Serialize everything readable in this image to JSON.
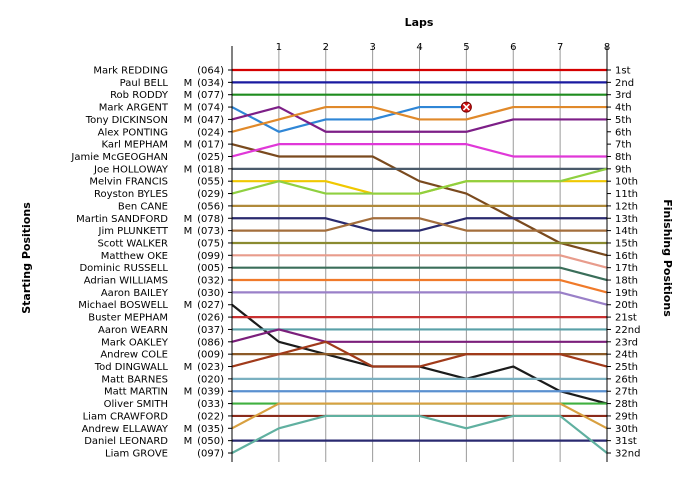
{
  "chart_data": {
    "type": "line",
    "title": "Laps",
    "xlabel": "Laps",
    "ylabel_left": "Starting Positions",
    "ylabel_right": "Finishing Positions",
    "x": [
      0,
      1,
      2,
      3,
      4,
      5,
      6,
      7,
      8
    ],
    "x_tick_labels": [
      "1",
      "2",
      "3",
      "4",
      "5",
      "6",
      "7",
      "8"
    ],
    "y_range": [
      1,
      32
    ],
    "y_inverted": true,
    "grid": "vertical",
    "drivers_left": [
      {
        "name": "Mark REDDING",
        "cls": "",
        "num": "(064)"
      },
      {
        "name": "Paul BELL",
        "cls": "M",
        "num": "(034)"
      },
      {
        "name": "Rob RODDY",
        "cls": "M",
        "num": "(077)"
      },
      {
        "name": "Mark ARGENT",
        "cls": "M",
        "num": "(074)"
      },
      {
        "name": "Tony DICKINSON",
        "cls": "M",
        "num": "(047)"
      },
      {
        "name": "Alex PONTING",
        "cls": "",
        "num": "(024)"
      },
      {
        "name": "Karl MEPHAM",
        "cls": "M",
        "num": "(017)"
      },
      {
        "name": "Jamie McGEOGHAN",
        "cls": "",
        "num": "(025)"
      },
      {
        "name": "Joe HOLLOWAY",
        "cls": "M",
        "num": "(018)"
      },
      {
        "name": "Melvin FRANCIS",
        "cls": "",
        "num": "(055)"
      },
      {
        "name": "Royston BYLES",
        "cls": "",
        "num": "(029)"
      },
      {
        "name": "Ben CANE",
        "cls": "",
        "num": "(056)"
      },
      {
        "name": "Martin SANDFORD",
        "cls": "M",
        "num": "(078)"
      },
      {
        "name": "Jim PLUNKETT",
        "cls": "M",
        "num": "(073)"
      },
      {
        "name": "Scott WALKER",
        "cls": "",
        "num": "(075)"
      },
      {
        "name": "Matthew OKE",
        "cls": "",
        "num": "(099)"
      },
      {
        "name": "Dominic RUSSELL",
        "cls": "",
        "num": "(005)"
      },
      {
        "name": "Adrian WILLIAMS",
        "cls": "",
        "num": "(032)"
      },
      {
        "name": "Aaron BAILEY",
        "cls": "",
        "num": "(030)"
      },
      {
        "name": "Michael BOSWELL",
        "cls": "M",
        "num": "(027)"
      },
      {
        "name": "Buster MEPHAM",
        "cls": "",
        "num": "(026)"
      },
      {
        "name": "Aaron WEARN",
        "cls": "",
        "num": "(037)"
      },
      {
        "name": "Mark OAKLEY",
        "cls": "",
        "num": "(086)"
      },
      {
        "name": "Andrew COLE",
        "cls": "",
        "num": "(009)"
      },
      {
        "name": "Tod DINGWALL",
        "cls": "M",
        "num": "(023)"
      },
      {
        "name": "Matt BARNES",
        "cls": "",
        "num": "(020)"
      },
      {
        "name": "Matt MARTIN",
        "cls": "M",
        "num": "(039)"
      },
      {
        "name": "Oliver SMITH",
        "cls": "",
        "num": "(033)"
      },
      {
        "name": "Liam CRAWFORD",
        "cls": "",
        "num": "(022)"
      },
      {
        "name": "Andrew ELLAWAY",
        "cls": "M",
        "num": "(035)"
      },
      {
        "name": "Daniel LEONARD",
        "cls": "M",
        "num": "(050)"
      },
      {
        "name": "Liam GROVE",
        "cls": "",
        "num": "(097)"
      }
    ],
    "finishing_labels": [
      "1st",
      "2nd",
      "3rd",
      "4th",
      "5th",
      "6th",
      "7th",
      "8th",
      "9th",
      "10th",
      "11th",
      "12th",
      "13th",
      "14th",
      "15th",
      "16th",
      "17th",
      "18th",
      "19th",
      "20th",
      "21st",
      "22nd",
      "23rd",
      "24th",
      "25th",
      "26th",
      "27th",
      "28th",
      "29th",
      "30th",
      "31st",
      "32nd"
    ],
    "series": [
      {
        "color": "#d40000",
        "positions": [
          1,
          1,
          1,
          1,
          1,
          1,
          1,
          1,
          1
        ]
      },
      {
        "color": "#1a1aa0",
        "positions": [
          2,
          2,
          2,
          2,
          2,
          2,
          2,
          2,
          2
        ]
      },
      {
        "color": "#1e8c1e",
        "positions": [
          3,
          3,
          3,
          3,
          3,
          3,
          3,
          3,
          3
        ]
      },
      {
        "color": "#2f86d6",
        "positions": [
          4,
          6,
          5,
          5,
          4,
          4
        ],
        "retired_after": 5
      },
      {
        "color": "#7d1f87",
        "positions": [
          5,
          4,
          6,
          6,
          6,
          6,
          5,
          5,
          5
        ]
      },
      {
        "color": "#e0892a",
        "positions": [
          6,
          5,
          4,
          4,
          5,
          5,
          4,
          4,
          4
        ]
      },
      {
        "color": "#7a4a1e",
        "positions": [
          7,
          8,
          8,
          8,
          10,
          11,
          13,
          15,
          16
        ]
      },
      {
        "color": "#e038d8",
        "positions": [
          8,
          7,
          7,
          7,
          7,
          7,
          8,
          8,
          8
        ]
      },
      {
        "color": "#4a5a6a",
        "positions": [
          9,
          9,
          9,
          9,
          9,
          9,
          9,
          9,
          9
        ]
      },
      {
        "color": "#f0c800",
        "positions": [
          10,
          10,
          10,
          11,
          11,
          10,
          10,
          10,
          10
        ]
      },
      {
        "color": "#8fd040",
        "positions": [
          11,
          10,
          11,
          11,
          11,
          10,
          10,
          10,
          9
        ]
      },
      {
        "color": "#b08a3a",
        "positions": [
          12,
          12,
          12,
          12,
          12,
          12,
          12,
          12,
          12
        ]
      },
      {
        "color": "#2a2a6e",
        "positions": [
          13,
          13,
          13,
          14,
          14,
          13,
          13,
          13,
          13
        ]
      },
      {
        "color": "#a46e3c",
        "positions": [
          14,
          14,
          14,
          13,
          13,
          14,
          14,
          14,
          14
        ]
      },
      {
        "color": "#8a8a30",
        "positions": [
          15,
          15,
          15,
          15,
          15,
          15,
          15,
          15,
          15
        ]
      },
      {
        "color": "#e89c8c",
        "positions": [
          16,
          16,
          16,
          16,
          16,
          16,
          16,
          16,
          17
        ]
      },
      {
        "color": "#3a6e5a",
        "positions": [
          17,
          17,
          17,
          17,
          17,
          17,
          17,
          17,
          18
        ]
      },
      {
        "color": "#f07a2a",
        "positions": [
          18,
          18,
          18,
          18,
          18,
          18,
          18,
          18,
          19
        ]
      },
      {
        "color": "#9a80c8",
        "positions": [
          19,
          19,
          19,
          19,
          19,
          19,
          19,
          19,
          20
        ]
      },
      {
        "color": "#1b1b1b",
        "positions": [
          20,
          23,
          24,
          25,
          25,
          26,
          25,
          27,
          28
        ]
      },
      {
        "color": "#c83030",
        "positions": [
          21,
          21,
          21,
          21,
          21,
          21,
          21,
          21,
          21
        ]
      },
      {
        "color": "#5aa0a8",
        "positions": [
          22,
          22,
          22,
          22,
          22,
          22,
          22,
          22,
          22
        ]
      },
      {
        "color": "#7b1f7b",
        "positions": [
          23,
          22,
          23,
          23,
          23,
          23,
          23,
          23,
          23
        ]
      },
      {
        "color": "#8c5a28",
        "positions": [
          24,
          24,
          24,
          24,
          24,
          24,
          24,
          24,
          24
        ]
      },
      {
        "color": "#a03a1a",
        "positions": [
          25,
          24,
          23,
          25,
          25,
          24,
          24,
          24,
          25
        ]
      },
      {
        "color": "#7ab0c0",
        "positions": [
          26,
          26,
          26,
          26,
          26,
          26,
          26,
          26,
          26
        ]
      },
      {
        "color": "#5a90d0",
        "positions": [
          27,
          27,
          27,
          27,
          27,
          27,
          27,
          27,
          27
        ]
      },
      {
        "color": "#40b040",
        "positions": [
          28,
          28,
          28,
          28,
          28,
          28,
          28,
          28,
          28
        ]
      },
      {
        "color": "#8a2a1a",
        "positions": [
          29,
          29,
          29,
          29,
          29,
          29,
          29,
          29,
          29
        ]
      },
      {
        "color": "#d8a040",
        "positions": [
          30,
          28,
          28,
          28,
          28,
          28,
          28,
          28,
          30
        ]
      },
      {
        "color": "#2a2a70",
        "positions": [
          31,
          31,
          31,
          31,
          31,
          31,
          31,
          31,
          31
        ]
      },
      {
        "color": "#60b0a0",
        "positions": [
          32,
          30,
          29,
          29,
          29,
          30,
          29,
          29,
          32
        ]
      }
    ]
  }
}
